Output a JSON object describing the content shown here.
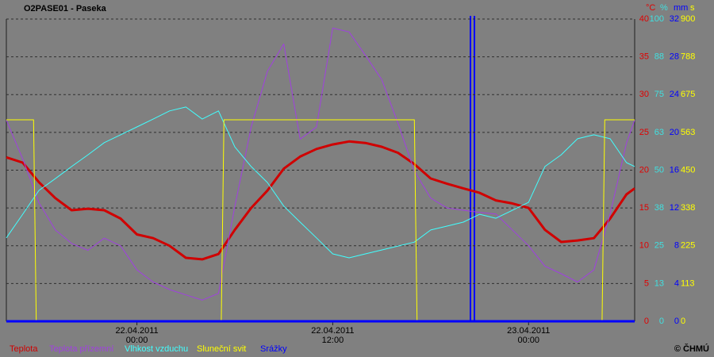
{
  "chart_data": {
    "type": "line",
    "title": "O2PASE01 - Paseka",
    "copyright": "© ČHMÚ",
    "x": [
      "21.04.2011 16:00",
      "21.04.2011 17:00",
      "21.04.2011 18:00",
      "21.04.2011 19:00",
      "21.04.2011 20:00",
      "21.04.2011 21:00",
      "21.04.2011 22:00",
      "21.04.2011 23:00",
      "22.04.2011 00:00",
      "22.04.2011 01:00",
      "22.04.2011 02:00",
      "22.04.2011 03:00",
      "22.04.2011 04:00",
      "22.04.2011 05:00",
      "22.04.2011 06:00",
      "22.04.2011 07:00",
      "22.04.2011 08:00",
      "22.04.2011 09:00",
      "22.04.2011 10:00",
      "22.04.2011 11:00",
      "22.04.2011 12:00",
      "22.04.2011 13:00",
      "22.04.2011 14:00",
      "22.04.2011 15:00",
      "22.04.2011 16:00",
      "22.04.2011 17:00",
      "22.04.2011 18:00",
      "22.04.2011 19:00",
      "22.04.2011 20:00",
      "22.04.2011 21:00",
      "22.04.2011 22:00",
      "22.04.2011 23:00",
      "23.04.2011 00:00",
      "23.04.2011 01:00",
      "23.04.2011 02:00",
      "23.04.2011 03:00",
      "23.04.2011 04:00",
      "23.04.2011 05:00",
      "23.04.2011 06:00",
      "23.04.2011 06:30"
    ],
    "xlim": [
      "21.04.2011 16:00",
      "23.04.2011 06:30"
    ],
    "xticks": [
      "22.04.2011 00:00",
      "22.04.2011 12:00",
      "23.04.2011 00:00"
    ],
    "grid": true,
    "axes": {
      "y": {
        "label": "°C",
        "color": "#e00000",
        "lim": [
          0,
          40
        ],
        "ticks": [
          0,
          5,
          10,
          15,
          20,
          25,
          30,
          35,
          40
        ]
      },
      "y2": {
        "label": "%",
        "color": "#40e0e0",
        "lim": [
          0,
          100
        ],
        "ticks": [
          0,
          {
            "value": 12.5,
            "label": "13"
          },
          25,
          {
            "value": 37.5,
            "label": "38"
          },
          50,
          {
            "value": 62.5,
            "label": "63"
          },
          75,
          {
            "value": 87.5,
            "label": "88"
          },
          100
        ]
      },
      "y3": {
        "label": "mm",
        "color": "#0000ff",
        "lim": [
          0,
          32
        ],
        "ticks": [
          0,
          4,
          8,
          12,
          16,
          20,
          24,
          28,
          32
        ]
      },
      "y4": {
        "label": "s",
        "color": "#ffff00",
        "lim": [
          0,
          900
        ],
        "ticks": [
          0,
          {
            "value": 112.5,
            "label": "113"
          },
          225,
          {
            "value": 337.5,
            "label": "338"
          },
          450,
          {
            "value": 562.5,
            "label": "563"
          },
          675,
          {
            "value": 787.5,
            "label": "788"
          },
          900
        ]
      }
    },
    "series": [
      {
        "name": "Teplota",
        "color": "#d00000",
        "axis": "y",
        "width": 3,
        "values": [
          21.7,
          21,
          18.4,
          16.3,
          14.7,
          14.9,
          14.7,
          13.6,
          11.5,
          11,
          10,
          8.4,
          8.2,
          8.9,
          12.1,
          15,
          17.3,
          20.2,
          21.8,
          22.8,
          23.4,
          23.8,
          23.6,
          23.1,
          22.3,
          20.8,
          18.9,
          18.2,
          17.6,
          17,
          16,
          15.6,
          15,
          12.1,
          10.5,
          10.7,
          11,
          13.6,
          16.8,
          17.6
        ]
      },
      {
        "name": "Teplota přízemní",
        "color": "#a040e0",
        "axis": "y",
        "width": 1,
        "values": [
          26.6,
          21.5,
          15.7,
          12.1,
          10.3,
          9.4,
          11,
          10,
          6.8,
          5.2,
          4.2,
          3.5,
          2.8,
          3.7,
          15.2,
          25.7,
          33.1,
          36.7,
          24.1,
          25.7,
          38.8,
          38.3,
          35.2,
          32,
          26.2,
          19.9,
          16.3,
          15,
          14.7,
          14.4,
          14.2,
          12.1,
          10,
          7.3,
          6.3,
          5.2,
          6.8,
          14.2,
          23.6,
          26.6
        ]
      },
      {
        "name": "Vlhkost vzduchu",
        "color": "#40ffff",
        "axis": "y2",
        "width": 1,
        "values": [
          27.6,
          35.4,
          43.3,
          47.2,
          51.2,
          55.1,
          59.1,
          61.7,
          64.3,
          66.9,
          69.6,
          70.9,
          66.9,
          69.6,
          57.7,
          51.2,
          45.9,
          38.1,
          32.8,
          27.6,
          22.3,
          21,
          22.3,
          23.6,
          24.9,
          26.2,
          30.2,
          31.5,
          32.8,
          35.4,
          34.1,
          36.7,
          39.4,
          51.2,
          55.1,
          60.4,
          61.7,
          60.4,
          52.5,
          51.2
        ]
      },
      {
        "name": "Sluneční svit",
        "color": "#ffff00",
        "axis": "y4",
        "width": 1,
        "x": [
          "21.04.2011 16:00",
          "21.04.2011 17:40",
          "21.04.2011 17:50",
          "22.04.2011 05:10",
          "22.04.2011 05:20",
          "22.04.2011 17:00",
          "22.04.2011 17:10",
          "23.04.2011 04:30",
          "23.04.2011 04:40",
          "23.04.2011 06:30"
        ],
        "values": [
          600,
          600,
          0,
          0,
          600,
          600,
          0,
          0,
          600,
          600
        ]
      },
      {
        "name": "Srážky",
        "color": "#0000ff",
        "axis": "y3",
        "width": 3,
        "x": [
          "21.04.2011 16:00",
          "23.04.2011 06:30"
        ],
        "values": [
          0,
          0
        ]
      }
    ]
  }
}
